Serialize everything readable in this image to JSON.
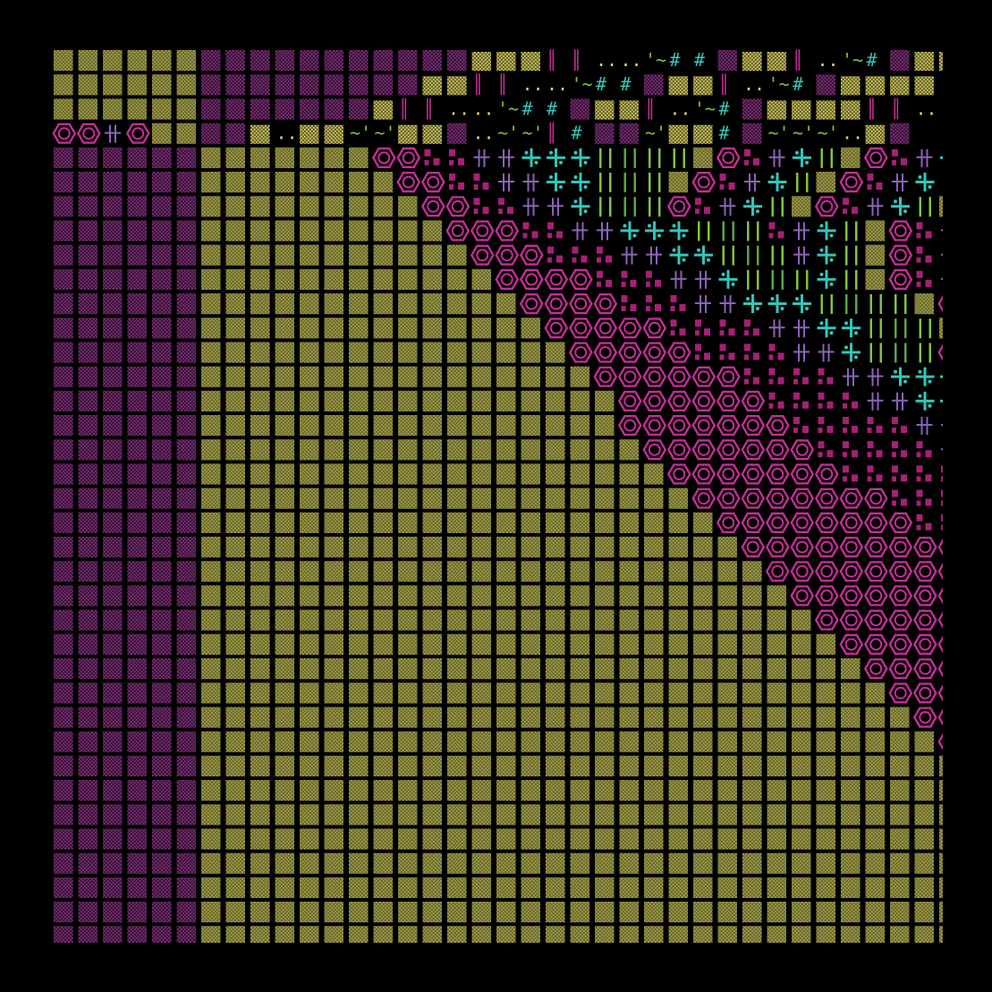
{
  "background": "#000000",
  "palette": {
    "olive": "#6f6d2c",
    "olive_dot": "#a7a552",
    "plum": "#3a1738",
    "plum_dot": "#8c2f86",
    "khaki": "#ddd36a",
    "khaki_dark": "#6e6a2c",
    "magenta": "#c42e95",
    "magenta_block": "#a81f77",
    "lavender": "#8b63b8",
    "teal": "#33c7b8",
    "lime": "#7fc43c",
    "grass": "#55a843"
  },
  "band_colors": {
    "left": "plum",
    "middle": "olive"
  },
  "glyphs": {
    "chain": "hexagon-icon",
    "pixel": "dash-block-icon",
    "dagger": "double-cross-icon",
    "spark": "asterisk-icon",
    "bar": "vertical-bar-icon",
    "wave": "tilde-glyph",
    "hash": "hash-glyph",
    "dots": "dot-pair-glyph",
    "pillar": "double-bar-glyph"
  }
}
